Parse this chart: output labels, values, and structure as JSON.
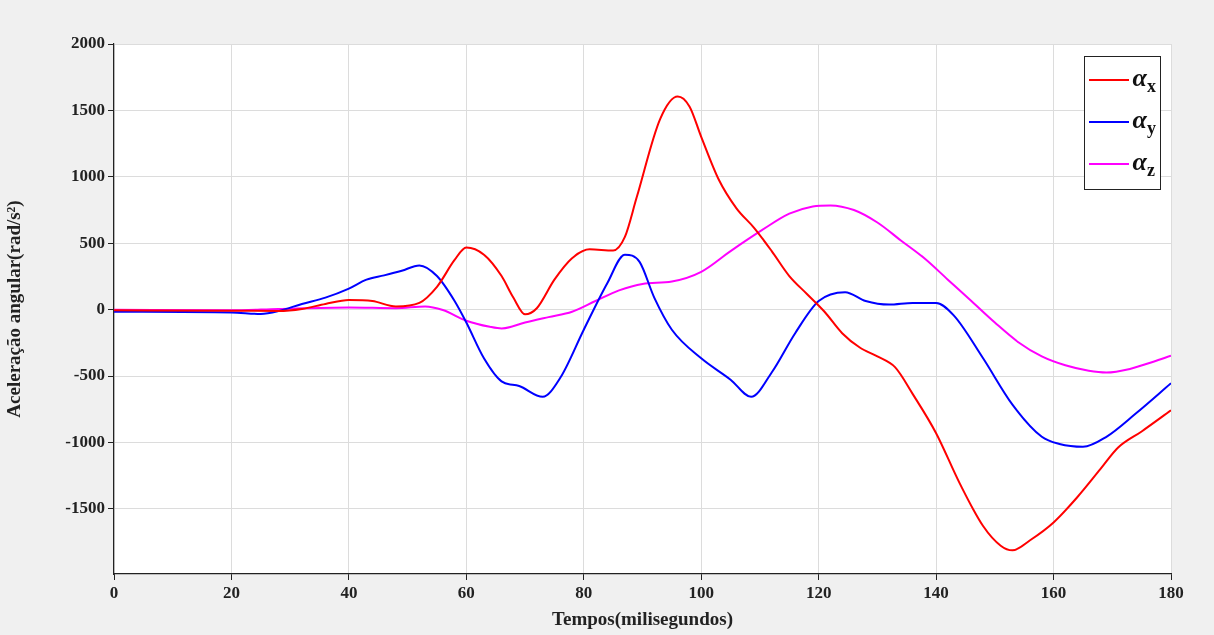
{
  "chart_data": {
    "type": "line",
    "xlabel": "Tempos(milisegundos)",
    "ylabel": "Aceleração angular(rad/s²)",
    "xlim": [
      0,
      180
    ],
    "xticks": [
      0,
      20,
      40,
      60,
      80,
      100,
      120,
      140,
      160,
      180
    ],
    "ylim": [
      -1990,
      2000
    ],
    "yticks": [
      -1500,
      -1000,
      -500,
      0,
      500,
      1000,
      1500,
      2000
    ],
    "grid": true,
    "legend": "top right",
    "marker": "none",
    "line_style": "solid",
    "series": [
      {
        "name": "α$_{x}$",
        "color": "#ff0000",
        "x": [
          0,
          20,
          28,
          32,
          36,
          40,
          44,
          48,
          52,
          55,
          58,
          60,
          63,
          66,
          68,
          70,
          72,
          75,
          78,
          81,
          85,
          87,
          89,
          93,
          96,
          98,
          100,
          103,
          106,
          109,
          112,
          115,
          118,
          121,
          124,
          127,
          130,
          133,
          136,
          140,
          144,
          148,
          151,
          153,
          156,
          160,
          164,
          168,
          171,
          175,
          180
        ],
        "values": [
          -5,
          -8,
          -10,
          5,
          43,
          73,
          65,
          24,
          51,
          172,
          374,
          468,
          414,
          253,
          91,
          -35,
          11,
          226,
          387,
          454,
          446,
          548,
          844,
          1435,
          1605,
          1530,
          1301,
          978,
          763,
          616,
          441,
          253,
          118,
          -16,
          -177,
          -285,
          -352,
          -433,
          -634,
          -930,
          -1306,
          -1629,
          -1777,
          -1812,
          -1736,
          -1602,
          -1414,
          -1199,
          -1038,
          -917,
          -758
        ]
      },
      {
        "name": "α$_{y}$",
        "color": "#0000ff",
        "x": [
          0,
          20,
          25,
          28,
          32,
          36,
          40,
          43,
          46,
          49,
          52,
          55,
          58,
          60,
          63,
          66,
          69,
          73,
          76,
          80,
          84,
          87,
          89.5,
          92,
          95,
          100,
          105,
          108.5,
          112,
          116,
          120,
          124.5,
          128,
          132,
          136,
          140,
          143,
          148,
          153,
          158,
          161,
          165,
          169,
          174,
          180
        ],
        "values": [
          -16,
          -21,
          -32,
          -11,
          43,
          91,
          159,
          226,
          258,
          293,
          333,
          253,
          65,
          -97,
          -366,
          -540,
          -575,
          -656,
          -513,
          -151,
          199,
          414,
          360,
          91,
          -151,
          -366,
          -527,
          -656,
          -473,
          -177,
          65,
          132,
          65,
          38,
          51,
          51,
          -43,
          -366,
          -715,
          -957,
          -1011,
          -1032,
          -957,
          -782,
          -554
        ]
      },
      {
        "name": "α$_{z}$",
        "color": "#ff00ff",
        "x": [
          0,
          20,
          28,
          40,
          48,
          53,
          56,
          60,
          64,
          66,
          70,
          74,
          78,
          82,
          86,
          90,
          95,
          100,
          105,
          110,
          115,
          119,
          122,
          126,
          130,
          134,
          138,
          142,
          146,
          150,
          154,
          158,
          162,
          166,
          169,
          173,
          177,
          180
        ],
        "values": [
          0,
          -5,
          5,
          16,
          11,
          24,
          -3,
          -83,
          -129,
          -142,
          -97,
          -56,
          -16,
          65,
          145,
          194,
          212,
          285,
          441,
          589,
          723,
          777,
          785,
          750,
          656,
          521,
          387,
          226,
          65,
          -97,
          -245,
          -352,
          -419,
          -460,
          -473,
          -446,
          -392,
          -347
        ]
      }
    ]
  }
}
